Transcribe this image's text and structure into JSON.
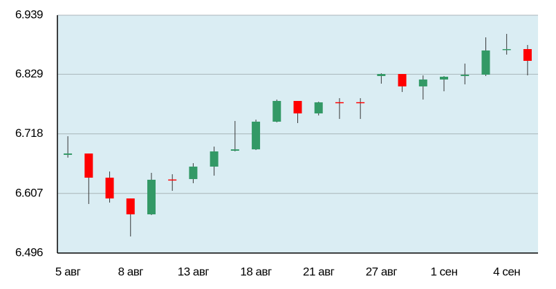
{
  "chart_data": {
    "type": "candlestick",
    "categories": [
      "5 авг",
      null,
      null,
      "8 авг",
      null,
      null,
      "13 авг",
      null,
      null,
      "18 авг",
      null,
      null,
      "21 авг",
      null,
      null,
      "27 авг",
      null,
      null,
      "1 сен",
      null,
      null,
      "4 сен",
      null
    ],
    "series": [
      {
        "open": [
          6.6789,
          6.6814,
          6.6364,
          6.5977,
          6.5681,
          6.633,
          6.6338,
          6.657,
          6.6866,
          6.6892,
          6.7407,
          6.7793,
          6.7561,
          6.777,
          6.777,
          6.8257,
          6.8295,
          6.8064,
          6.8192,
          6.8257,
          6.8282,
          6.8746,
          6.8759
        ],
        "high": [
          6.7136,
          6.6814,
          6.6479,
          6.5977,
          6.6454,
          6.6428,
          6.6634,
          6.6943,
          6.742,
          6.7445,
          6.7819,
          6.7793,
          6.778,
          6.7845,
          6.7845,
          6.8308,
          6.8295,
          6.8269,
          6.8257,
          6.8489,
          6.8978,
          6.9042,
          6.8836
        ],
        "low": [
          6.6737,
          6.5874,
          6.59,
          6.5269,
          6.5668,
          6.6119,
          6.6261,
          6.6402,
          6.6853,
          6.6879,
          6.7394,
          6.7381,
          6.7523,
          6.7458,
          6.7458,
          6.8115,
          6.796,
          6.7819,
          6.7973,
          6.8102,
          6.8257,
          6.8656,
          6.827
        ],
        "close": [
          6.6815,
          6.6364,
          6.5977,
          6.5681,
          6.6325,
          6.632,
          6.657,
          6.6853,
          6.6892,
          6.7407,
          6.7793,
          6.7561,
          6.7767,
          6.7764,
          6.7764,
          6.8295,
          6.8064,
          6.8192,
          6.8244,
          6.8282,
          6.8733,
          6.8759,
          6.854
        ]
      }
    ],
    "up_color": "#339966",
    "down_color": "#ff0000",
    "background": "#daedf3",
    "ylim": [
      6.496,
      6.939
    ],
    "yticks": [
      6.496,
      6.607,
      6.718,
      6.829,
      6.939
    ],
    "grid": true
  }
}
